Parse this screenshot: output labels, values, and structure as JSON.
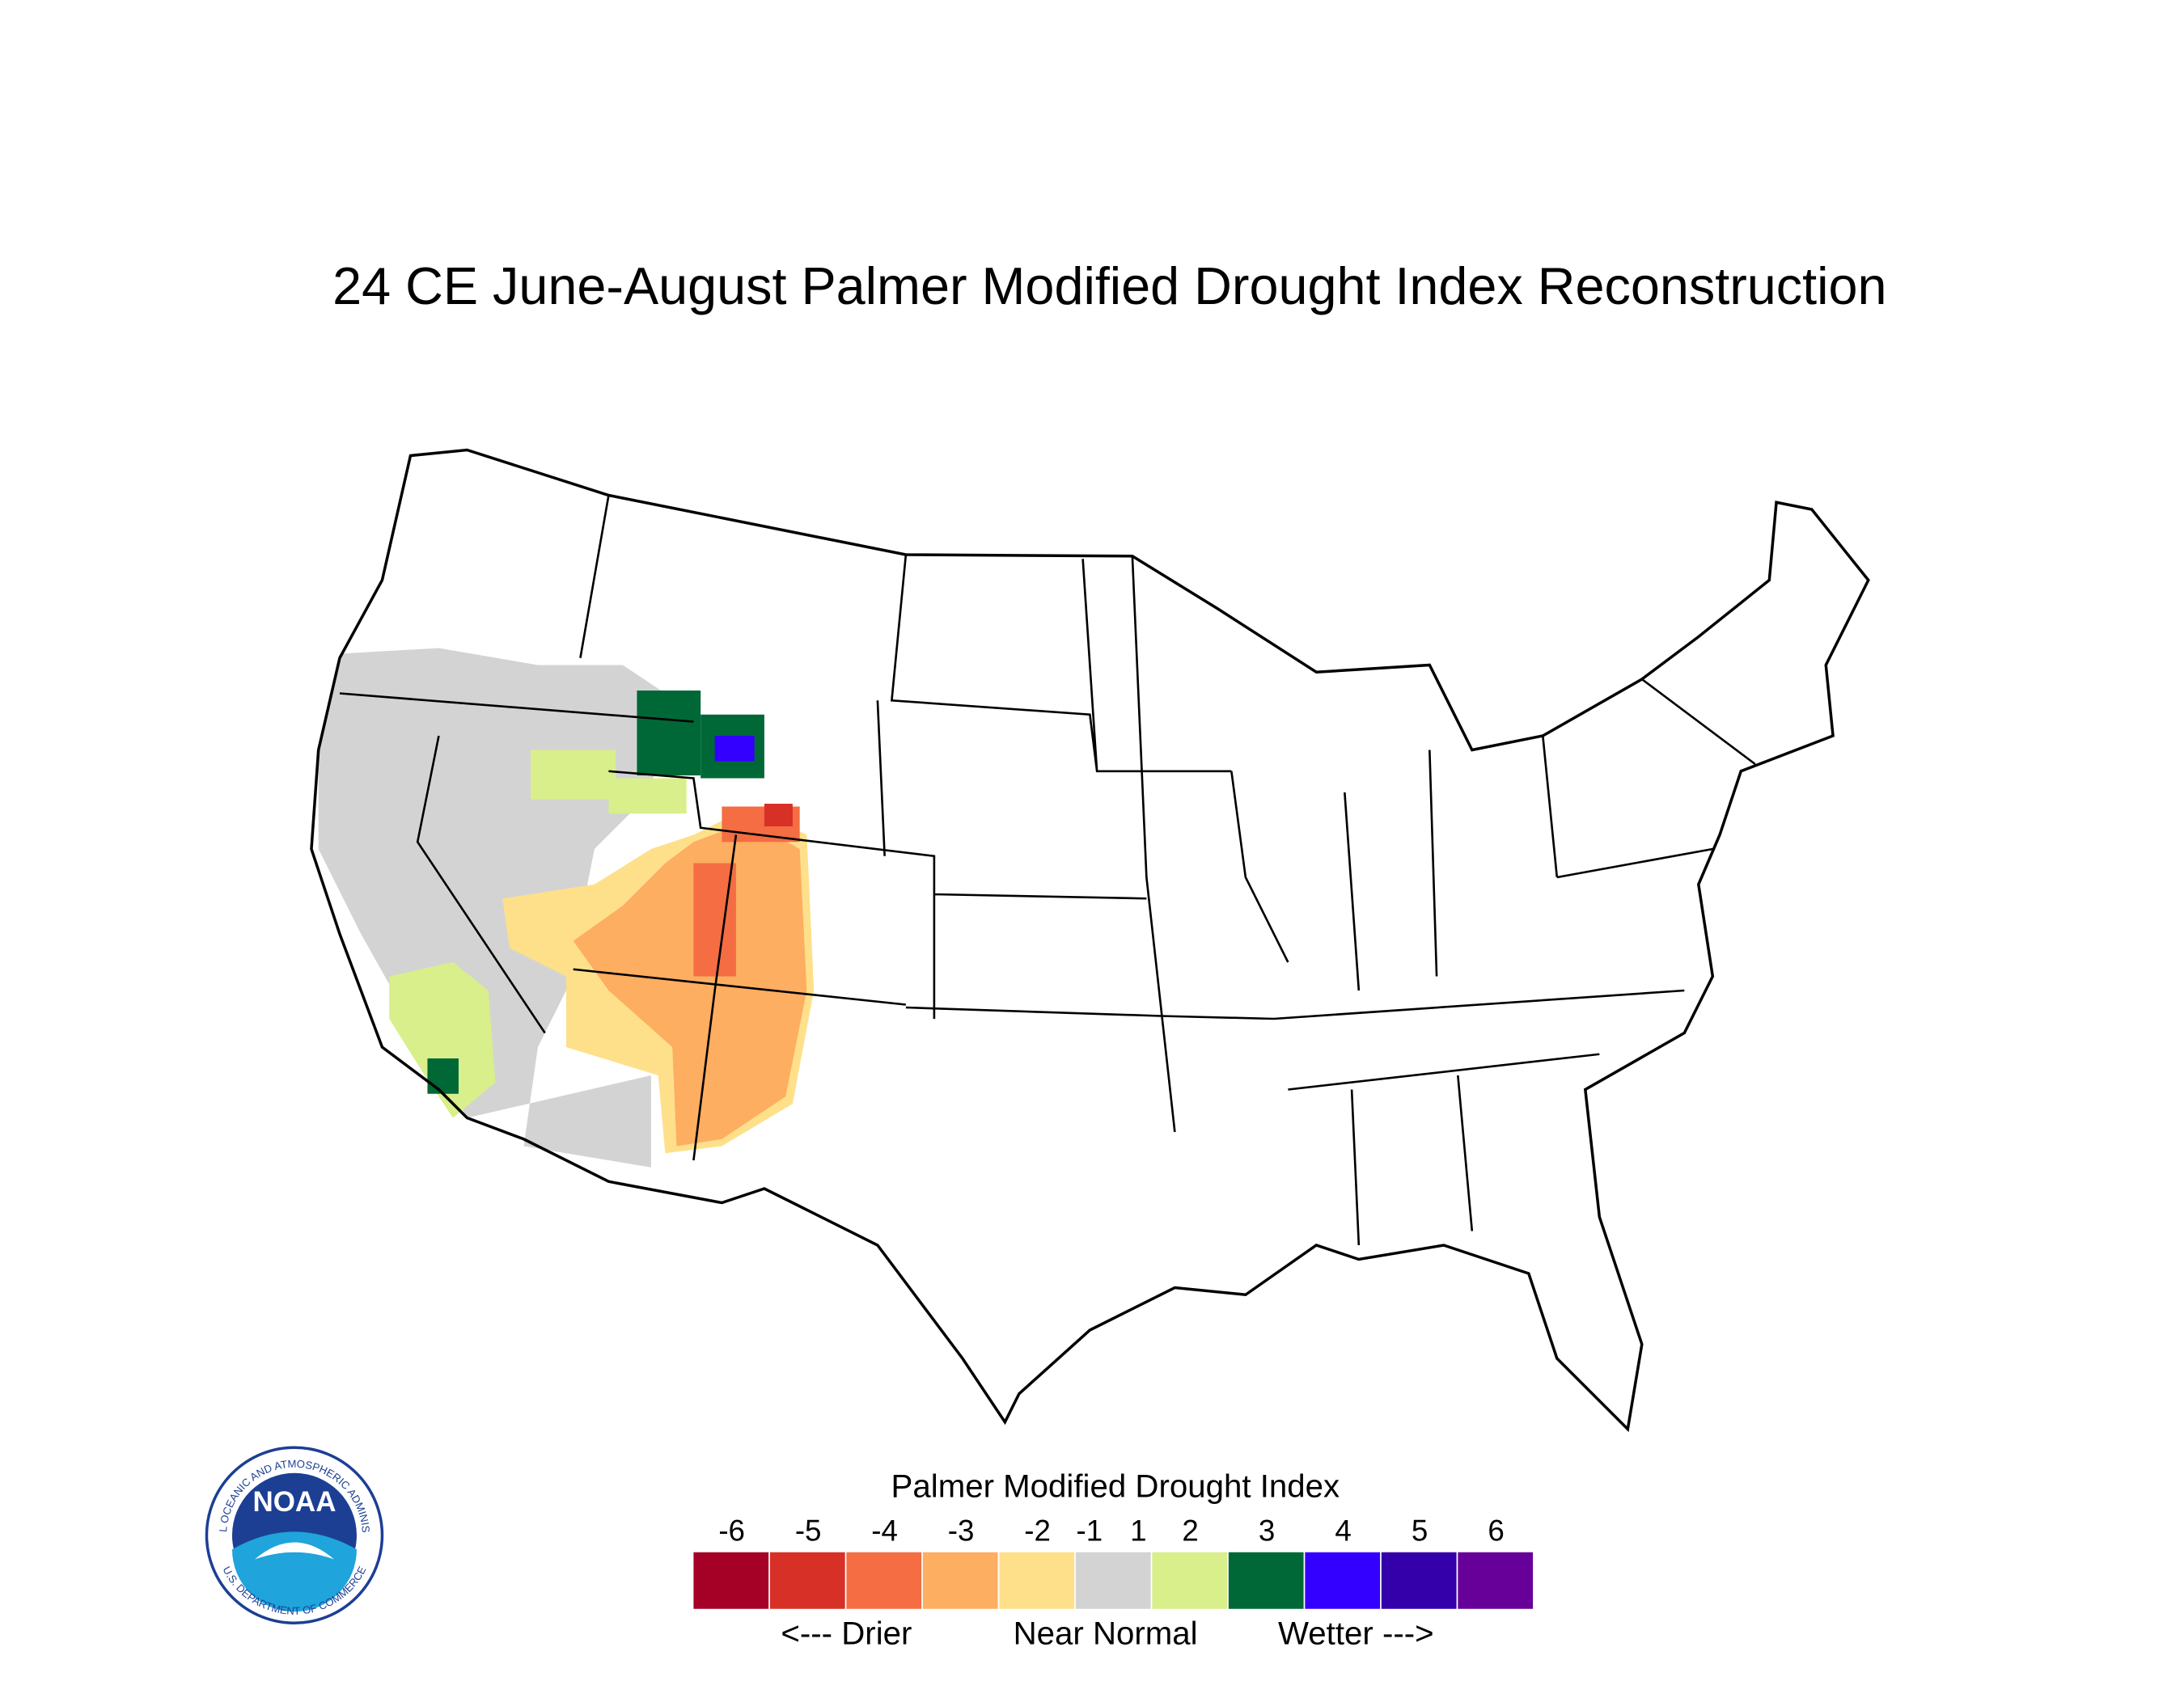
{
  "title": "24 CE  June-August  Palmer Modified Drought Index Reconstruction",
  "legend": {
    "title": "Palmer Modified Drought Index",
    "labels": [
      -6,
      -5,
      -4,
      -3,
      -2,
      -1,
      1,
      2,
      3,
      4,
      5,
      6
    ],
    "colors": [
      "#a50026",
      "#d73027",
      "#f46d43",
      "#fdae61",
      "#fee08b",
      "#d3d3d3",
      "#d9ef8b",
      "#006837",
      "#3300ff",
      "#3300aa",
      "#660099"
    ],
    "notes": [
      "<--- Drier",
      "Near Normal",
      "Wetter --->"
    ]
  },
  "logo": {
    "text": "NOAA",
    "ring": "NATIONAL OCEANIC AND ATMOSPHERIC ADMINISTRATION",
    "bottom": "U.S. DEPARTMENT OF COMMERCE"
  }
}
